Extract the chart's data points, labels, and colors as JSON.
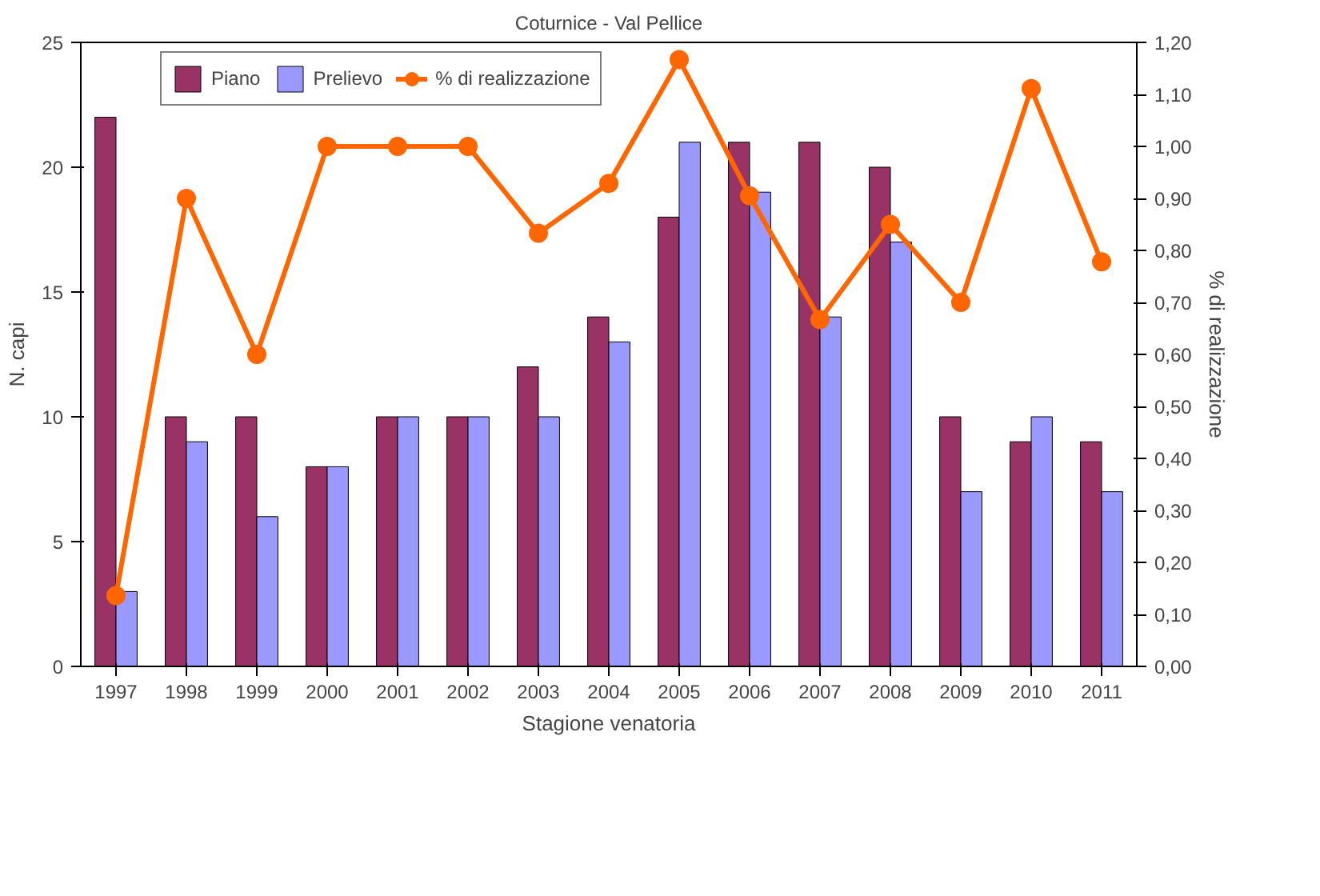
{
  "chart_data": {
    "type": "bar",
    "title": "Coturnice - Val Pellice",
    "xlabel": "Stagione venatoria",
    "ylabel": "N. capi",
    "y2label": "% di realizzazione",
    "categories": [
      "1997",
      "1998",
      "1999",
      "2000",
      "2001",
      "2002",
      "2003",
      "2004",
      "2005",
      "2006",
      "2007",
      "2008",
      "2009",
      "2010",
      "2011"
    ],
    "series": [
      {
        "name": "Piano",
        "color": "#993366",
        "values": [
          22,
          10,
          10,
          8,
          10,
          10,
          12,
          14,
          18,
          21,
          21,
          20,
          10,
          9,
          9
        ]
      },
      {
        "name": "Prelievo",
        "color": "#9999ff",
        "values": [
          3,
          9,
          6,
          8,
          10,
          10,
          10,
          13,
          21,
          19,
          14,
          17,
          7,
          10,
          7
        ]
      },
      {
        "name": "% di realizzazione",
        "type": "line",
        "axis": "y2",
        "color": "#ff6600",
        "marker": "circle",
        "values": [
          0.136,
          0.9,
          0.6,
          1.0,
          1.0,
          1.0,
          0.833,
          0.929,
          1.167,
          0.905,
          0.667,
          0.85,
          0.7,
          1.111,
          0.778
        ]
      }
    ],
    "ylim": [
      0,
      25
    ],
    "yticks": [
      0,
      5,
      10,
      15,
      20,
      25
    ],
    "y2lim": [
      0,
      1.2
    ],
    "y2ticks": [
      {
        "value": 0,
        "label": "0,00"
      },
      {
        "value": 0.1,
        "label": "0,10"
      },
      {
        "value": 0.2,
        "label": "0,20"
      },
      {
        "value": 0.3,
        "label": "0,30"
      },
      {
        "value": 0.4,
        "label": "0,40"
      },
      {
        "value": 0.5,
        "label": "0,50"
      },
      {
        "value": 0.6,
        "label": "0,60"
      },
      {
        "value": 0.7,
        "label": "0,70"
      },
      {
        "value": 0.8,
        "label": "0,80"
      },
      {
        "value": 0.9,
        "label": "0,90"
      },
      {
        "value": 1.0,
        "label": "1,00"
      },
      {
        "value": 1.1,
        "label": "1,10"
      },
      {
        "value": 1.2,
        "label": "1,20"
      }
    ],
    "grid": false,
    "legend": "top left"
  }
}
